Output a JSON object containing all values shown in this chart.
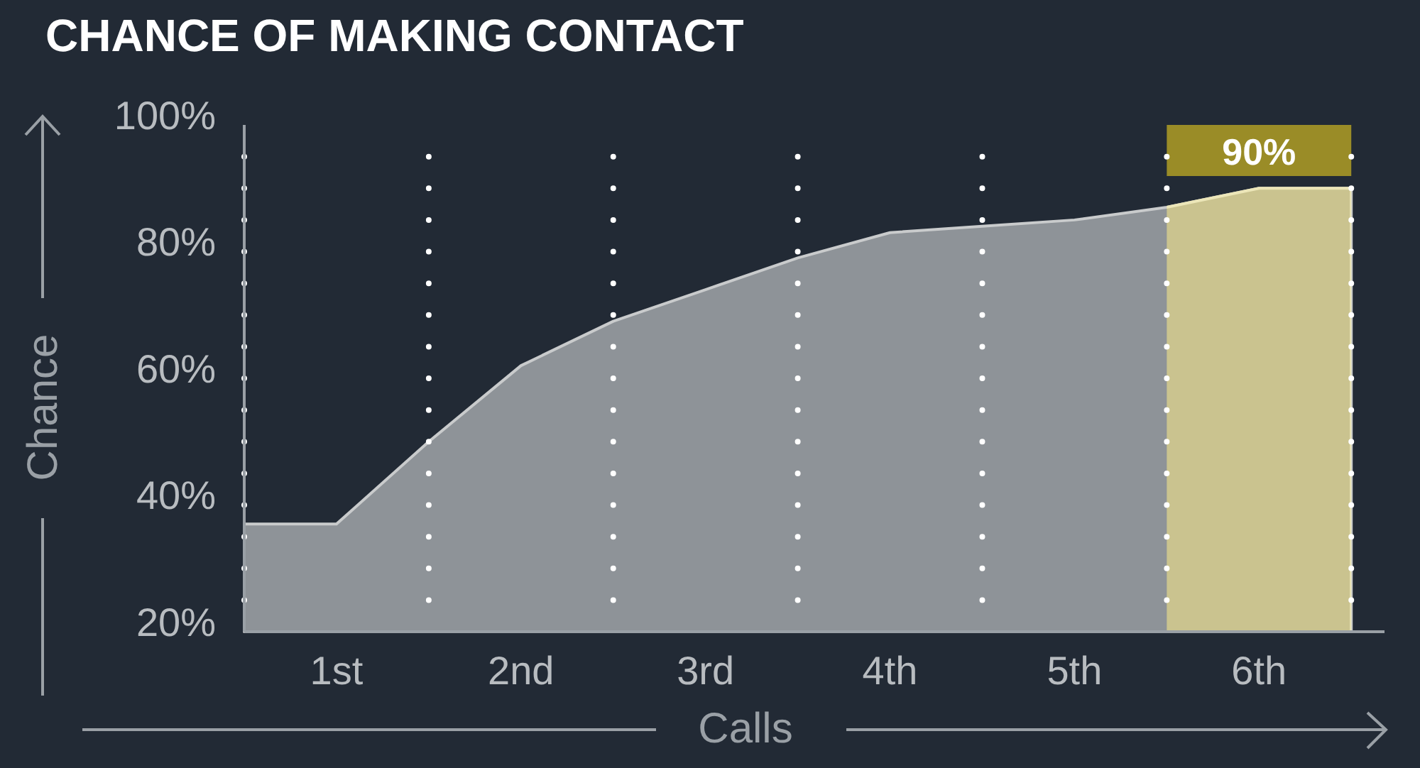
{
  "chart_data": {
    "type": "area",
    "title": "CHANCE OF MAKING CONTACT",
    "xlabel": "Calls",
    "ylabel": "Chance",
    "x": [
      0.5,
      1,
      1.5,
      2,
      2.5,
      3,
      3.5,
      4,
      4.5,
      5,
      5.5,
      6,
      6.5
    ],
    "series": [
      {
        "color": "#8e9398",
        "values": [
          37,
          37,
          50,
          62,
          69,
          74,
          79,
          83,
          84,
          85,
          87,
          90,
          90
        ]
      }
    ],
    "xlim": [
      0.5,
      6.68
    ],
    "xticks": [
      {
        "value": 0.5,
        "label": null
      },
      {
        "value": 1,
        "label": "1st"
      },
      {
        "value": 1.5,
        "label": null
      },
      {
        "value": 2,
        "label": "2nd"
      },
      {
        "value": 2.5,
        "label": null
      },
      {
        "value": 3,
        "label": "3rd"
      },
      {
        "value": 3.5,
        "label": null
      },
      {
        "value": 4,
        "label": "4th"
      },
      {
        "value": 4.5,
        "label": null
      },
      {
        "value": 5,
        "label": "5th"
      },
      {
        "value": 5.5,
        "label": null
      },
      {
        "value": 6,
        "label": "6th"
      },
      {
        "value": 6.5,
        "label": null
      }
    ],
    "ylim": [
      20,
      100
    ],
    "yticks": [
      {
        "value": 20,
        "label": "20%"
      },
      {
        "value": 40,
        "label": "40%"
      },
      {
        "value": 60,
        "label": "60%"
      },
      {
        "value": 80,
        "label": "80%"
      },
      {
        "value": 100,
        "label": "100%"
      }
    ],
    "grid": "x",
    "bands": [
      {
        "axis": "x",
        "from": 5.5,
        "to": 6.5,
        "label": "90%",
        "color": "#9a8c27"
      }
    ]
  }
}
